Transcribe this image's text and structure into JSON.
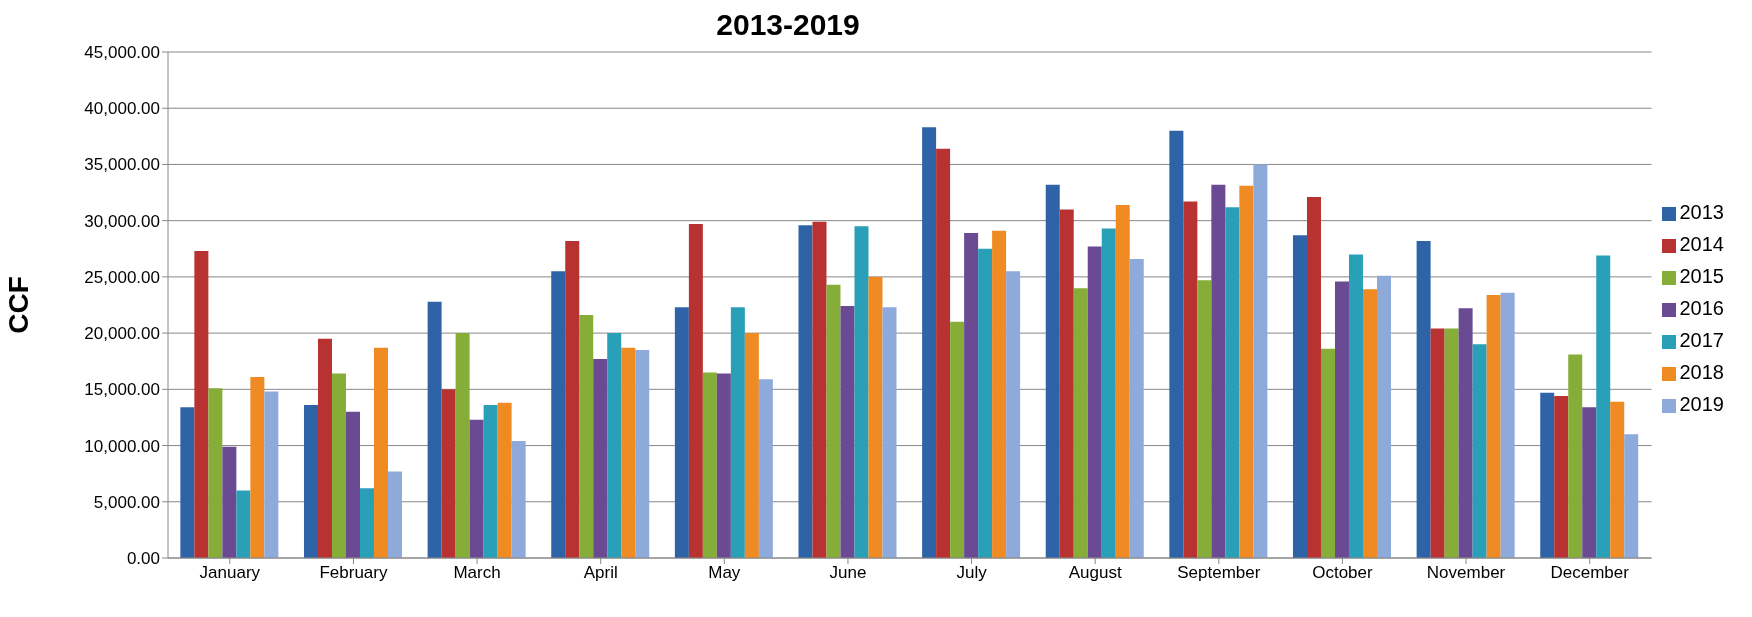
{
  "chart_data": {
    "type": "bar",
    "title": "2013-2019",
    "ylabel": "CCF",
    "categories": [
      "January",
      "February",
      "March",
      "April",
      "May",
      "June",
      "July",
      "August",
      "September",
      "October",
      "November",
      "December"
    ],
    "series": [
      {
        "name": "2013",
        "color": "#2e63a8",
        "values": [
          13400,
          13600,
          22800,
          25500,
          22300,
          29600,
          38300,
          33200,
          38000,
          28700,
          28200,
          14700
        ]
      },
      {
        "name": "2014",
        "color": "#b83232",
        "values": [
          27300,
          19500,
          15000,
          28200,
          29700,
          29900,
          36400,
          31000,
          31700,
          32100,
          20400,
          14400
        ]
      },
      {
        "name": "2015",
        "color": "#86ad38",
        "values": [
          15100,
          16400,
          20000,
          21600,
          16500,
          24300,
          21000,
          24000,
          24700,
          18600,
          20400,
          18100
        ]
      },
      {
        "name": "2016",
        "color": "#6a4a93",
        "values": [
          9900,
          13000,
          12300,
          17700,
          16400,
          22400,
          28900,
          27700,
          33200,
          24600,
          22200,
          13400
        ]
      },
      {
        "name": "2017",
        "color": "#2aa0b8",
        "values": [
          6000,
          6200,
          13600,
          20000,
          22300,
          29500,
          27500,
          29300,
          31200,
          27000,
          19000,
          26900
        ]
      },
      {
        "name": "2018",
        "color": "#f08a22",
        "values": [
          16100,
          18700,
          13800,
          18700,
          20000,
          25000,
          29100,
          31400,
          33100,
          23900,
          23400,
          13900
        ]
      },
      {
        "name": "2019",
        "color": "#8eaadb",
        "values": [
          14800,
          7700,
          10400,
          18500,
          15900,
          22300,
          25500,
          26600,
          35000,
          25100,
          23600,
          11000
        ]
      }
    ],
    "ylim": [
      0,
      45000
    ],
    "yticks": [
      {
        "value": 0,
        "label": "0.00"
      },
      {
        "value": 5000,
        "label": "5,000.00"
      },
      {
        "value": 10000,
        "label": "10,000.00"
      },
      {
        "value": 15000,
        "label": "15,000.00"
      },
      {
        "value": 20000,
        "label": "20,000.00"
      },
      {
        "value": 25000,
        "label": "25,000.00"
      },
      {
        "value": 30000,
        "label": "30,000.00"
      },
      {
        "value": 35000,
        "label": "35,000.00"
      },
      {
        "value": 40000,
        "label": "40,000.00"
      },
      {
        "value": 45000,
        "label": "45,000.00"
      }
    ],
    "grid": "y",
    "legend": "right"
  }
}
